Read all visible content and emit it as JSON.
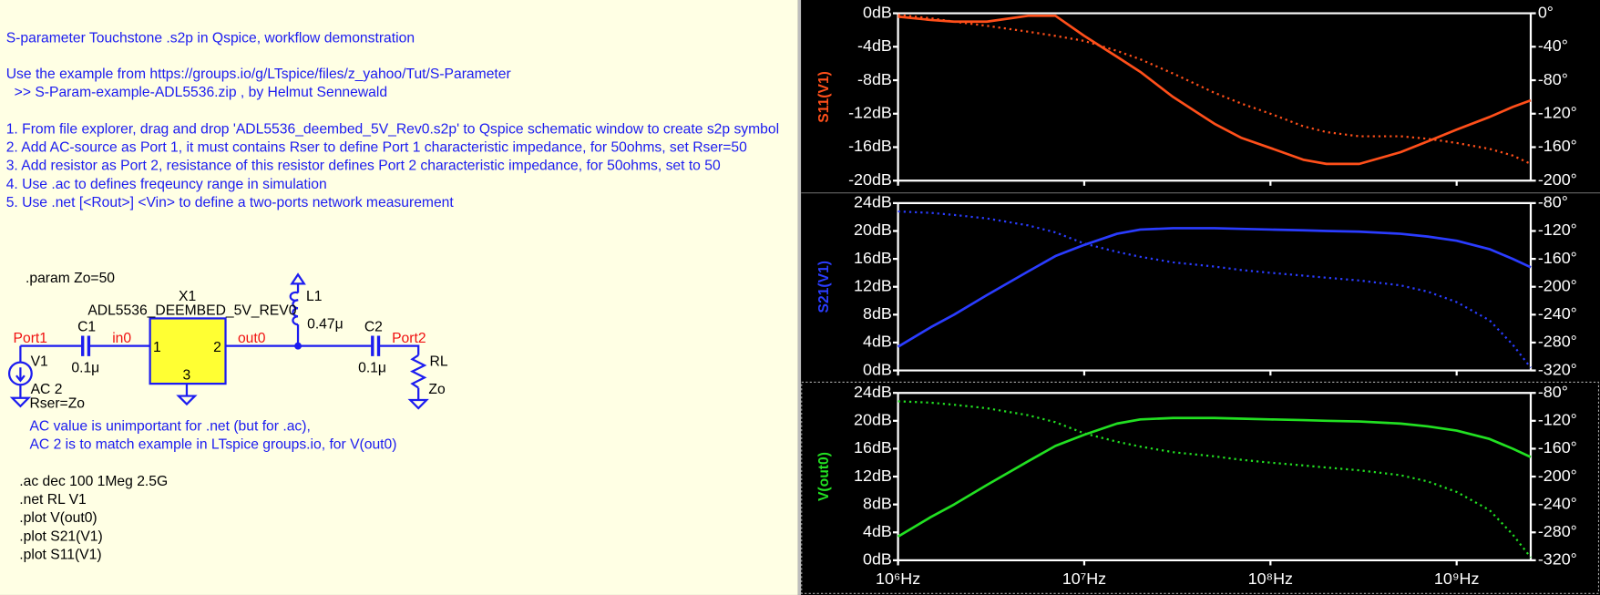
{
  "schematic": {
    "notes": [
      "S-parameter Touchstone .s2p in Qspice, workflow demonstration",
      "Use the example from https://groups.io/g/LTspice/files/z_yahoo/Tut/S-Parameter",
      ">> S-Param-example-ADL5536.zip , by Helmut Sennewald",
      "1. From file explorer, drag and drop 'ADL5536_deembed_5V_Rev0.s2p' to Qspice schematic window to create s2p symbol",
      "2. Add AC-source as Port 1, it must contains Rser to define Port 1 characteristic impedance, for 50ohms, set Rser=50",
      "3. Add resistor as Port 2, resistance of this resistor defines Port 2 characteristic impedance, for 50ohms, set to 50",
      "4. Use .ac to defines freqeuncy range in simulation",
      "5. Use .net [<Rout>] <Vin> to define a two-ports network measurement"
    ],
    "param": ".param Zo=50",
    "x1": {
      "name": "X1",
      "model": "ADL5536_DEEMBED_5V_REV0",
      "pins": [
        "1",
        "2",
        "3"
      ]
    },
    "c1": {
      "name": "C1",
      "value": "0.1μ"
    },
    "c2": {
      "name": "C2",
      "value": "0.1μ"
    },
    "l1": {
      "name": "L1",
      "value": "0.47μ"
    },
    "rl": {
      "name": "RL",
      "value": "Zo"
    },
    "v1": {
      "name": "V1",
      "value": "AC 2",
      "rser": "Rser=Zo"
    },
    "nets": [
      "Port1",
      "in0",
      "out0",
      "Port2"
    ],
    "comments": [
      "AC value is unimportant for .net (but for .ac),",
      "AC 2 is to match example in LTspice groups.io, for V(out0)"
    ],
    "directives": [
      ".ac dec 100 1Meg 2.5G",
      ".net RL V1",
      ".plot V(out0)",
      ".plot S21(V1)",
      ".plot S11(V1)"
    ]
  },
  "chart_data": [
    {
      "type": "line",
      "ylabel": "S11(V1)",
      "xscale": "log",
      "x": [
        1000000,
        1500000,
        2000000,
        3000000,
        5000000,
        7000000,
        10000000,
        15000000,
        20000000,
        30000000,
        50000000,
        70000000,
        100000000,
        150000000,
        200000000,
        300000000,
        500000000,
        700000000,
        1000000000,
        1500000000,
        2000000000,
        2500000000
      ],
      "xlim": [
        1000000,
        2500000000
      ],
      "xticks": [
        1000000,
        10000000,
        100000000,
        1000000000
      ],
      "ylim": [
        -20,
        0
      ],
      "yticks": [
        {
          "value": 0,
          "label": "0dB"
        },
        {
          "value": -4,
          "label": "-4dB"
        },
        {
          "value": -8,
          "label": "-8dB"
        },
        {
          "value": -12,
          "label": "-12dB"
        },
        {
          "value": -16,
          "label": "-16dB"
        },
        {
          "value": -20,
          "label": "-20dB"
        }
      ],
      "y2lim": [
        -200,
        0
      ],
      "y2ticks": [
        {
          "value": 0,
          "label": "0°"
        },
        {
          "value": -40,
          "label": "-40°"
        },
        {
          "value": -80,
          "label": "-80°"
        },
        {
          "value": -120,
          "label": "-120°"
        },
        {
          "value": -160,
          "label": "-160°"
        },
        {
          "value": -200,
          "label": "-200°"
        }
      ],
      "color": "#ff4f1a",
      "series": [
        {
          "color": "#ff4f1a",
          "style": "solid",
          "values": [
            -0.4,
            -0.8,
            -1.0,
            -1.0,
            -0.3,
            -0.3,
            -2.7,
            -5.2,
            -7.0,
            -10.0,
            -13.2,
            -14.9,
            -16.1,
            -17.5,
            -18.0,
            -18.0,
            -16.6,
            -15.3,
            -13.9,
            -12.4,
            -11.2,
            -10.4
          ]
        },
        {
          "color": "#ff4f1a",
          "style": "dotted",
          "axis": "y2",
          "values": [
            -2,
            -6,
            -10,
            -15,
            -22,
            -27,
            -33,
            -45,
            -55,
            -72,
            -95,
            -108,
            -120,
            -135,
            -142,
            -147,
            -147,
            -150,
            -155,
            -162,
            -170,
            -180
          ]
        }
      ]
    },
    {
      "type": "line",
      "ylabel": "S21(V1)",
      "xscale": "log",
      "x": [
        1000000,
        1500000,
        2000000,
        3000000,
        5000000,
        7000000,
        10000000,
        15000000,
        20000000,
        30000000,
        50000000,
        70000000,
        100000000,
        150000000,
        200000000,
        300000000,
        500000000,
        700000000,
        1000000000,
        1500000000,
        2000000000,
        2500000000
      ],
      "xlim": [
        1000000,
        2500000000
      ],
      "xticks": [
        1000000,
        10000000,
        100000000,
        1000000000
      ],
      "ylim": [
        0,
        24
      ],
      "yticks": [
        {
          "value": 24,
          "label": "24dB"
        },
        {
          "value": 20,
          "label": "20dB"
        },
        {
          "value": 16,
          "label": "16dB"
        },
        {
          "value": 12,
          "label": "12dB"
        },
        {
          "value": 8,
          "label": "8dB"
        },
        {
          "value": 4,
          "label": "4dB"
        },
        {
          "value": 0,
          "label": "0dB"
        }
      ],
      "y2lim": [
        -320,
        -80
      ],
      "y2ticks": [
        {
          "value": -80,
          "label": "-80°"
        },
        {
          "value": -120,
          "label": "-120°"
        },
        {
          "value": -160,
          "label": "-160°"
        },
        {
          "value": -200,
          "label": "-200°"
        },
        {
          "value": -240,
          "label": "-240°"
        },
        {
          "value": -280,
          "label": "-280°"
        },
        {
          "value": -320,
          "label": "-320°"
        }
      ],
      "color": "#2a3cff",
      "series": [
        {
          "color": "#2a3cff",
          "style": "solid",
          "values": [
            3.4,
            6.2,
            8.0,
            10.8,
            14.2,
            16.4,
            18.0,
            19.6,
            20.2,
            20.4,
            20.4,
            20.3,
            20.2,
            20.1,
            20.0,
            19.9,
            19.6,
            19.2,
            18.6,
            17.4,
            16.0,
            14.8
          ]
        },
        {
          "color": "#2a3cff",
          "style": "dotted",
          "axis": "y2",
          "values": [
            -92,
            -94,
            -97,
            -102,
            -112,
            -122,
            -138,
            -150,
            -157,
            -165,
            -171,
            -176,
            -180,
            -184,
            -187,
            -191,
            -198,
            -207,
            -222,
            -248,
            -283,
            -316
          ]
        }
      ]
    },
    {
      "type": "line",
      "ylabel": "V(out0)",
      "xscale": "log",
      "x": [
        1000000,
        1500000,
        2000000,
        3000000,
        5000000,
        7000000,
        10000000,
        15000000,
        20000000,
        30000000,
        50000000,
        70000000,
        100000000,
        150000000,
        200000000,
        300000000,
        500000000,
        700000000,
        1000000000,
        1500000000,
        2000000000,
        2500000000
      ],
      "xlim": [
        1000000,
        2500000000
      ],
      "xticks": [
        {
          "value": 1000000,
          "label": "10⁶Hz"
        },
        {
          "value": 10000000,
          "label": "10⁷Hz"
        },
        {
          "value": 100000000,
          "label": "10⁸Hz"
        },
        {
          "value": 1000000000,
          "label": "10⁹Hz"
        }
      ],
      "ylim": [
        0,
        24
      ],
      "yticks": [
        {
          "value": 24,
          "label": "24dB"
        },
        {
          "value": 20,
          "label": "20dB"
        },
        {
          "value": 16,
          "label": "16dB"
        },
        {
          "value": 12,
          "label": "12dB"
        },
        {
          "value": 8,
          "label": "8dB"
        },
        {
          "value": 4,
          "label": "4dB"
        },
        {
          "value": 0,
          "label": "0dB"
        }
      ],
      "y2lim": [
        -320,
        -80
      ],
      "y2ticks": [
        {
          "value": -80,
          "label": "-80°"
        },
        {
          "value": -120,
          "label": "-120°"
        },
        {
          "value": -160,
          "label": "-160°"
        },
        {
          "value": -200,
          "label": "-200°"
        },
        {
          "value": -240,
          "label": "-240°"
        },
        {
          "value": -280,
          "label": "-280°"
        },
        {
          "value": -320,
          "label": "-320°"
        }
      ],
      "color": "#22e022",
      "series": [
        {
          "color": "#22e022",
          "style": "solid",
          "values": [
            3.4,
            6.2,
            8.0,
            10.8,
            14.2,
            16.4,
            18.0,
            19.6,
            20.2,
            20.4,
            20.4,
            20.3,
            20.2,
            20.1,
            20.0,
            19.9,
            19.6,
            19.2,
            18.6,
            17.4,
            16.0,
            14.8
          ]
        },
        {
          "color": "#22e022",
          "style": "dotted",
          "axis": "y2",
          "values": [
            -92,
            -94,
            -97,
            -102,
            -112,
            -122,
            -138,
            -150,
            -157,
            -165,
            -171,
            -176,
            -180,
            -184,
            -187,
            -191,
            -198,
            -207,
            -222,
            -248,
            -283,
            -316
          ]
        }
      ]
    }
  ]
}
